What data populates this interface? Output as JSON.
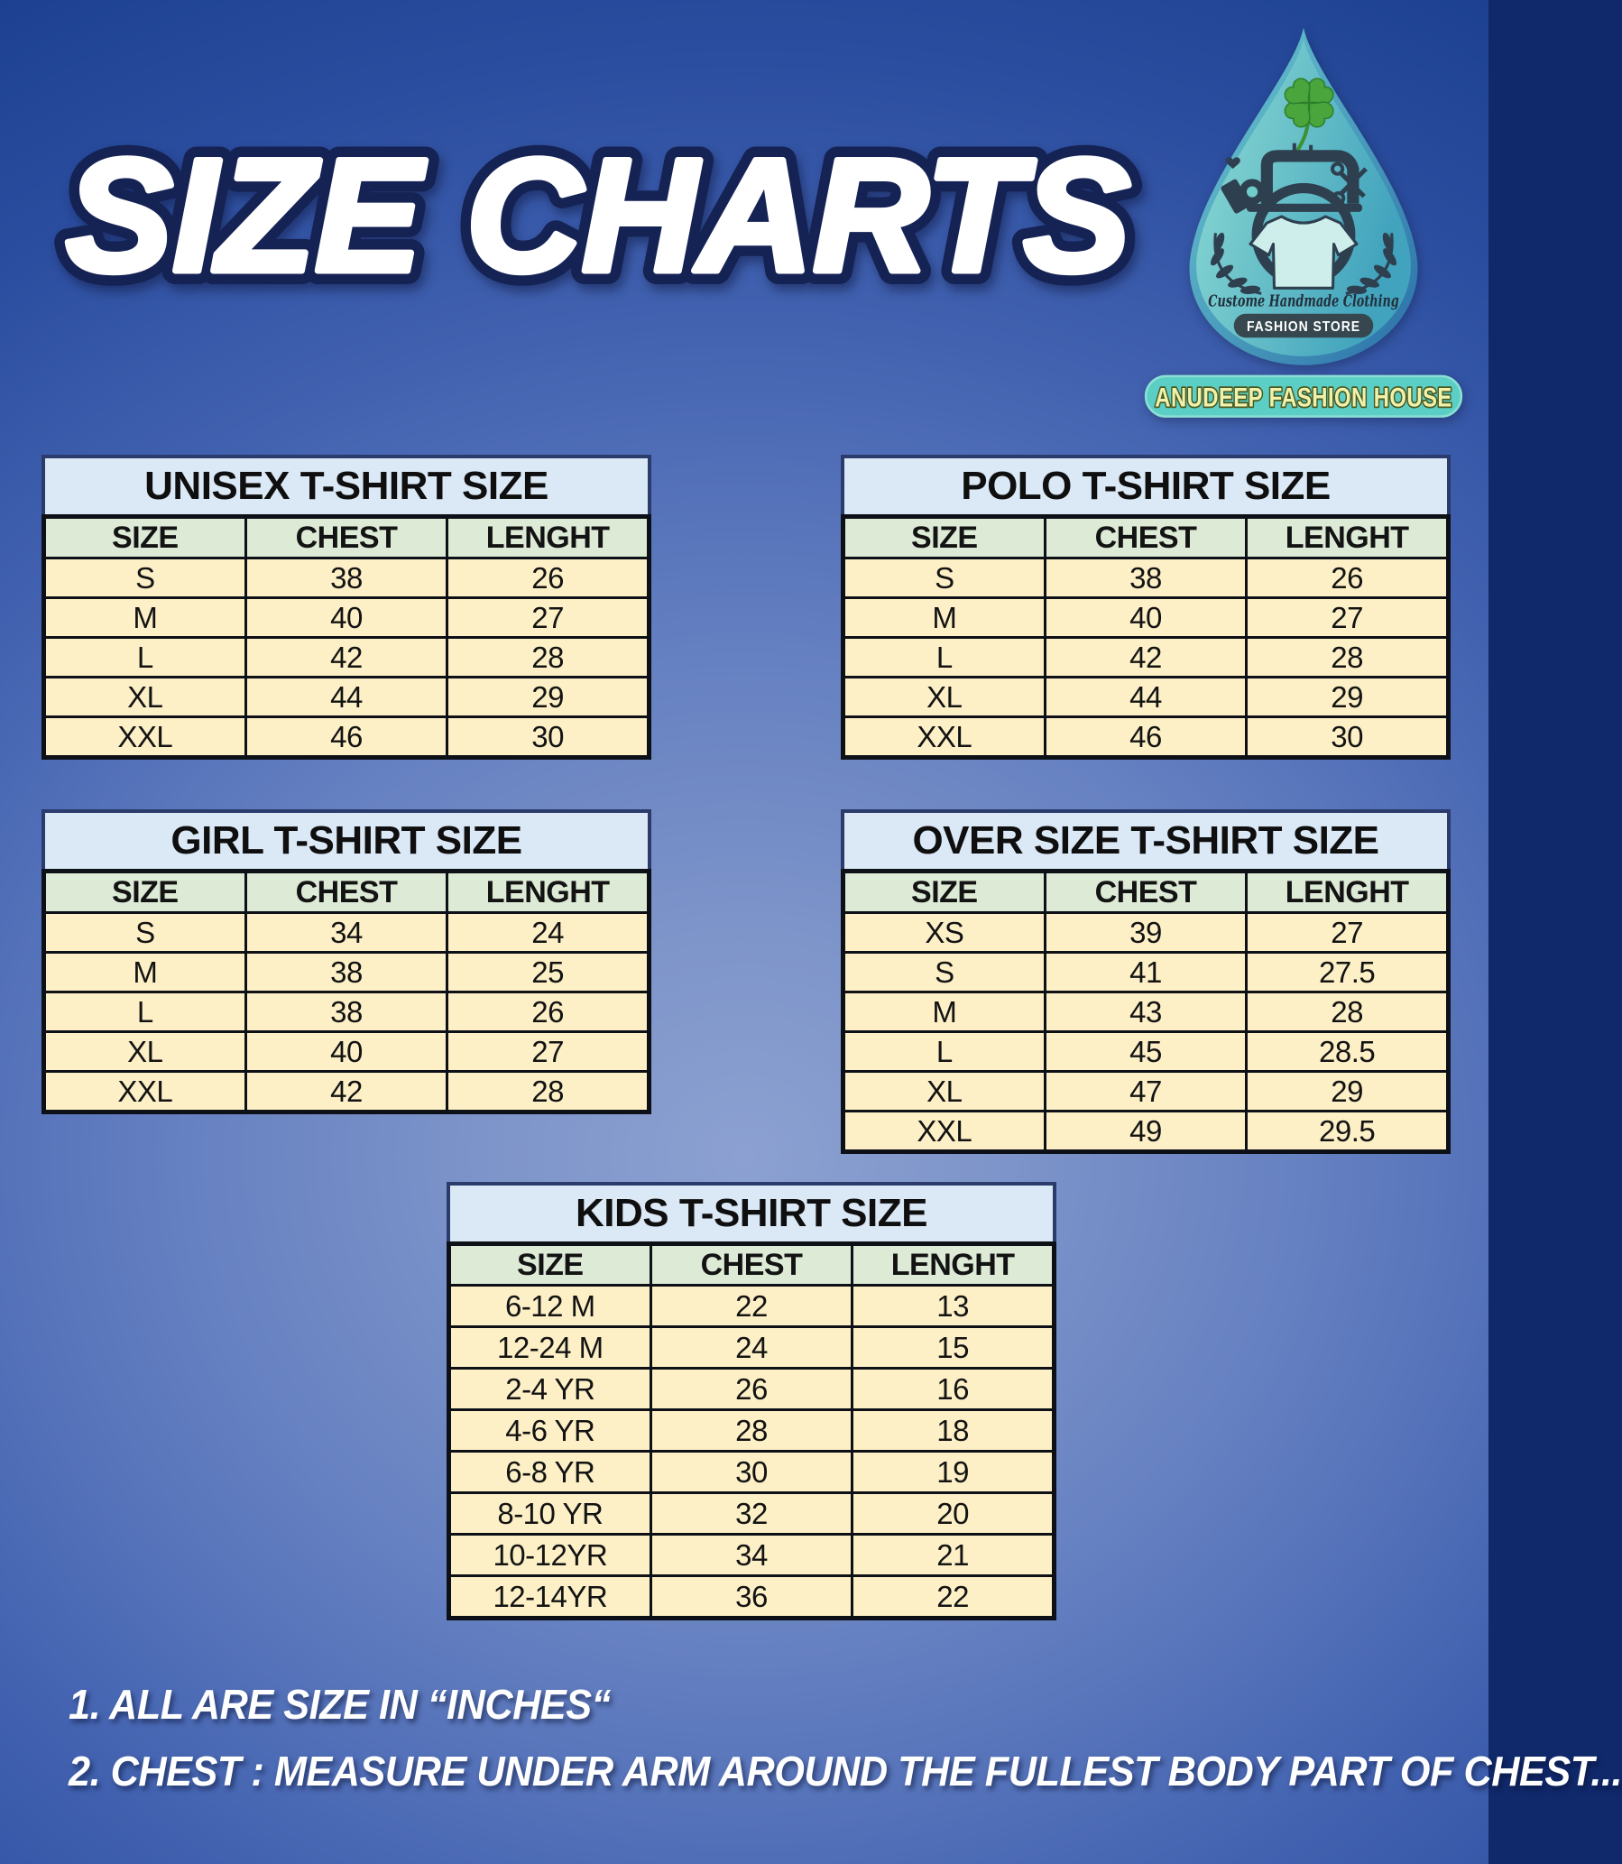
{
  "page_title": "SIZE CHARTS",
  "logo": {
    "script_text": "Custome Handmade Clothing",
    "store_label": "FASHION STORE",
    "badge_text": "ANUDEEP FASHION HOUSE"
  },
  "tables": [
    {
      "id": "unisex",
      "title": "UNISEX T-SHIRT SIZE",
      "columns": [
        "SIZE",
        "CHEST",
        "LENGHT"
      ],
      "rows": [
        [
          "S",
          "38",
          "26"
        ],
        [
          "M",
          "40",
          "27"
        ],
        [
          "L",
          "42",
          "28"
        ],
        [
          "XL",
          "44",
          "29"
        ],
        [
          "XXL",
          "46",
          "30"
        ]
      ]
    },
    {
      "id": "polo",
      "title": "POLO T-SHIRT SIZE",
      "columns": [
        "SIZE",
        "CHEST",
        "LENGHT"
      ],
      "rows": [
        [
          "S",
          "38",
          "26"
        ],
        [
          "M",
          "40",
          "27"
        ],
        [
          "L",
          "42",
          "28"
        ],
        [
          "XL",
          "44",
          "29"
        ],
        [
          "XXL",
          "46",
          "30"
        ]
      ]
    },
    {
      "id": "girl",
      "title": "GIRL T-SHIRT SIZE",
      "columns": [
        "SIZE",
        "CHEST",
        "LENGHT"
      ],
      "rows": [
        [
          "S",
          "34",
          "24"
        ],
        [
          "M",
          "38",
          "25"
        ],
        [
          "L",
          "38",
          "26"
        ],
        [
          "XL",
          "40",
          "27"
        ],
        [
          "XXL",
          "42",
          "28"
        ]
      ]
    },
    {
      "id": "oversize",
      "title": "OVER SIZE T-SHIRT SIZE",
      "columns": [
        "SIZE",
        "CHEST",
        "LENGHT"
      ],
      "rows": [
        [
          "XS",
          "39",
          "27"
        ],
        [
          "S",
          "41",
          "27.5"
        ],
        [
          "M",
          "43",
          "28"
        ],
        [
          "L",
          "45",
          "28.5"
        ],
        [
          "XL",
          "47",
          "29"
        ],
        [
          "XXL",
          "49",
          "29.5"
        ]
      ]
    },
    {
      "id": "kids",
      "title": "KIDS T-SHIRT SIZE",
      "columns": [
        "SIZE",
        "CHEST",
        "LENGHT"
      ],
      "rows": [
        [
          "6-12 M",
          "22",
          "13"
        ],
        [
          "12-24 M",
          "24",
          "15"
        ],
        [
          "2-4 YR",
          "26",
          "16"
        ],
        [
          "4-6 YR",
          "28",
          "18"
        ],
        [
          "6-8 YR",
          "30",
          "19"
        ],
        [
          "8-10 YR",
          "32",
          "20"
        ],
        [
          "10-12YR",
          "34",
          "21"
        ],
        [
          "12-14YR",
          "36",
          "22"
        ]
      ]
    }
  ],
  "notes": [
    "1. ALL ARE SIZE IN “INCHES“",
    "2. CHEST : MEASURE UNDER ARM AROUND THE FULLEST BODY PART OF CHEST..."
  ],
  "colors": {
    "background_center": "#8ca1d1",
    "background_edge": "#16377f",
    "headline_fill": "#ffffff",
    "headline_outline": "#152254",
    "table_title_bg": "#dbe8f6",
    "table_title_border": "#2a3b6c",
    "header_row_bg": "#dcead6",
    "data_row_bg": "#fdf0c6",
    "grid_border": "#0d1016",
    "logo_drop_teal": "#6fcdc9",
    "logo_art": "#2e4050",
    "badge_bg": "#5bcfc5",
    "badge_text": "#eef2ac"
  }
}
